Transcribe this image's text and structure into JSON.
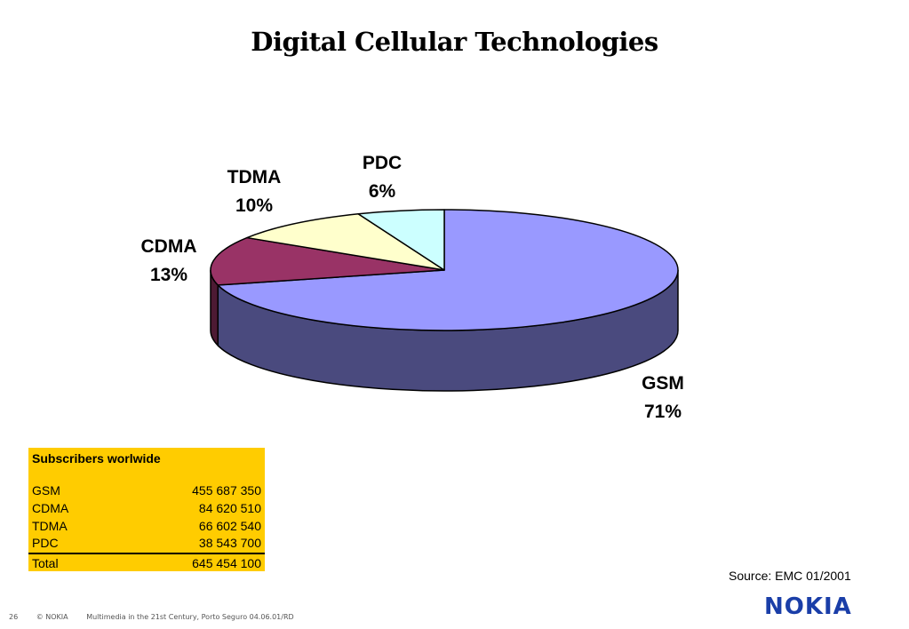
{
  "title": "Digital Cellular Technologies",
  "chart_data": {
    "type": "pie",
    "title": "Digital Cellular Technologies",
    "slices": [
      {
        "label": "GSM",
        "percent": "71%",
        "value": 71,
        "color": "#9999ff",
        "side_color": "#4a4a7e"
      },
      {
        "label": "CDMA",
        "percent": "13%",
        "value": 13,
        "color": "#993366",
        "side_color": "#4d1a33"
      },
      {
        "label": "TDMA",
        "percent": "10%",
        "value": 10,
        "color": "#ffffcc",
        "side_color": "#80806a"
      },
      {
        "label": "PDC",
        "percent": "6%",
        "value": 6,
        "color": "#ccffff",
        "side_color": "#668080"
      }
    ]
  },
  "table": {
    "header": "Subscribers worlwide",
    "rows": [
      {
        "name": "GSM",
        "value": "455 687 350"
      },
      {
        "name": "CDMA",
        "value": "84 620 510"
      },
      {
        "name": "TDMA",
        "value": "66 602 540"
      },
      {
        "name": "PDC",
        "value": "38 543 700"
      }
    ],
    "total": {
      "name": "Total",
      "value": "645 454 100"
    }
  },
  "source": "Source: EMC 01/2001",
  "footer": {
    "page": "26",
    "copyright": "© NOKIA",
    "text": "Multimedia in the 21st Century, Porto Seguro 04.06.01/RD"
  },
  "logo": "NOKIA"
}
